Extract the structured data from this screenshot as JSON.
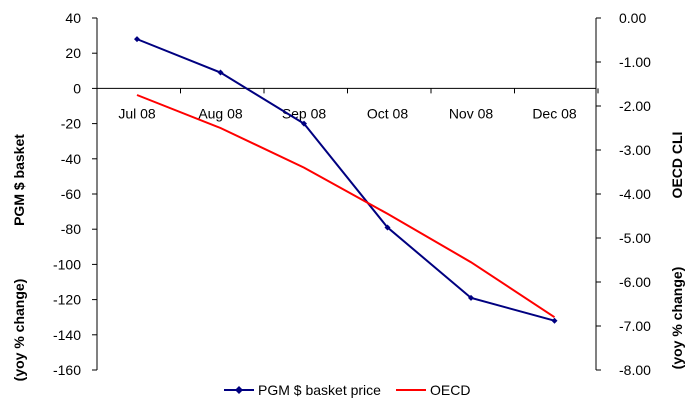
{
  "chart_data": {
    "type": "line",
    "categories": [
      "Jul 08",
      "Aug 08",
      "Sep 08",
      "Oct 08",
      "Nov 08",
      "Dec 08"
    ],
    "y_left": {
      "label_main": "PGM $ basket",
      "label_sub": "(yoy % change)",
      "ylim": [
        -160,
        40
      ],
      "ticks": [
        "40",
        "20",
        "0",
        "-20",
        "-40",
        "-60",
        "-80",
        "-100",
        "-120",
        "-140",
        "-160"
      ]
    },
    "y_right": {
      "label_main": "OECD CLI",
      "label_sub": "(yoy % change)",
      "ylim": [
        -8.0,
        0.0
      ],
      "ticks": [
        "0.00",
        "-1.00",
        "-2.00",
        "-3.00",
        "-4.00",
        "-5.00",
        "-6.00",
        "-7.00",
        "-8.00"
      ]
    },
    "series": [
      {
        "name": "PGM $ basket price",
        "axis": "left",
        "color": "#000080",
        "marker": "diamond",
        "values": [
          28,
          9,
          -20,
          -79,
          -119,
          -132
        ]
      },
      {
        "name": "OECD",
        "axis": "right",
        "color": "#ff0000",
        "marker": "none",
        "values": [
          -1.75,
          -2.5,
          -3.4,
          -4.45,
          -5.55,
          -6.8
        ]
      }
    ],
    "legend_position": "bottom",
    "grid": false
  }
}
